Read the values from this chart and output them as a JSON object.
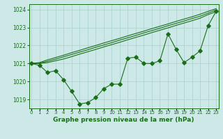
{
  "title": "Graphe pression niveau de la mer (hPa)",
  "xlabel_hours": [
    0,
    1,
    2,
    3,
    4,
    5,
    6,
    7,
    8,
    9,
    10,
    11,
    12,
    13,
    14,
    15,
    16,
    17,
    18,
    19,
    20,
    21,
    22,
    23
  ],
  "line_detailed": [
    1021.0,
    1020.9,
    1020.5,
    1020.6,
    1020.1,
    1019.45,
    1018.75,
    1018.82,
    1019.1,
    1019.6,
    1019.85,
    1019.85,
    1021.3,
    1021.35,
    1021.0,
    1021.0,
    1021.15,
    1022.65,
    1021.8,
    1021.05,
    1021.35,
    1021.7,
    1023.1,
    1023.9
  ],
  "line_smooth1": [
    1021.0,
    1021.0,
    1021.05,
    1021.15,
    1021.25,
    1021.38,
    1021.52,
    1021.65,
    1021.78,
    1021.92,
    1022.05,
    1022.18,
    1022.32,
    1022.45,
    1022.58,
    1022.72,
    1022.85,
    1022.98,
    1023.12,
    1023.25,
    1023.38,
    1023.52,
    1023.72,
    1023.88
  ],
  "line_smooth2": [
    1021.0,
    1021.02,
    1021.12,
    1021.24,
    1021.37,
    1021.5,
    1021.63,
    1021.76,
    1021.9,
    1022.03,
    1022.16,
    1022.3,
    1022.43,
    1022.56,
    1022.7,
    1022.83,
    1022.96,
    1023.1,
    1023.23,
    1023.36,
    1023.5,
    1023.63,
    1023.8,
    1023.97
  ],
  "line_smooth3": [
    1021.0,
    1021.05,
    1021.2,
    1021.33,
    1021.46,
    1021.6,
    1021.73,
    1021.87,
    1022.0,
    1022.14,
    1022.27,
    1022.4,
    1022.54,
    1022.67,
    1022.8,
    1022.94,
    1023.07,
    1023.2,
    1023.34,
    1023.47,
    1023.6,
    1023.74,
    1023.9,
    1024.05
  ],
  "ylim": [
    1018.5,
    1024.3
  ],
  "xlim": [
    -0.3,
    23.3
  ],
  "line_color": "#1a6e1a",
  "bg_color": "#cce9e7",
  "grid_color": "#aed4d2",
  "label_color": "#1a6e1a",
  "marker": "D",
  "marker_size": 2.8,
  "yticks": [
    1019,
    1020,
    1021,
    1022,
    1023,
    1024
  ],
  "xtick_labels": [
    "0",
    "1",
    "2",
    "3",
    "4",
    "5",
    "6",
    "7",
    "8",
    "9",
    "10",
    "11",
    "12",
    "13",
    "14",
    "15",
    "16",
    "17",
    "18",
    "19",
    "20",
    "21",
    "22",
    "23"
  ]
}
